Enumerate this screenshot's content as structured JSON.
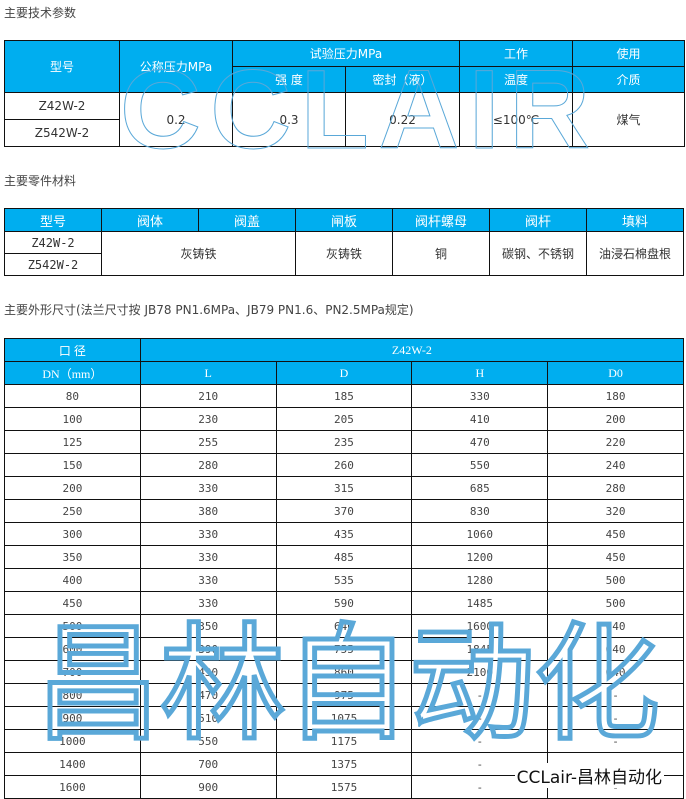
{
  "sections": {
    "tech": "主要技术参数",
    "materials": "主要零件材料",
    "dims": "主要外形尺寸(法兰尺寸按 JB78 PN1.6MPa、JB79 PN1.6、PN2.5MPa规定)"
  },
  "tech_table": {
    "h_model": "型号",
    "h_nominal": "公称压力MPa",
    "h_test": "试验压力MPa",
    "h_strength": "强 度",
    "h_seal": "密封（液）",
    "h_temp1": "工作",
    "h_temp2": "温度",
    "h_medium1": "使用",
    "h_medium2": "介质",
    "models": [
      "Z42W-2",
      "Z542W-2"
    ],
    "nominal": "0.2",
    "strength": "0.3",
    "seal": "0.22",
    "temp": "≤100℃",
    "medium": "煤气"
  },
  "mat_table": {
    "headers": [
      "型号",
      "阀体",
      "阀盖",
      "闸板",
      "阀杆螺母",
      "阀杆",
      "填料"
    ],
    "models": [
      "Z42W-2",
      "Z542W-2"
    ],
    "body": "灰铸铁",
    "gate": "灰铸铁",
    "nut": "铜",
    "stem": "碳钢、不锈钢",
    "packing": "油浸石棉盘根"
  },
  "dim_table": {
    "h_dn1": "口 径",
    "h_dn2": "DN（mm）",
    "h_model": "Z42W-2",
    "cols": [
      "L",
      "D",
      "H",
      "D0"
    ],
    "rows": [
      [
        "80",
        "210",
        "185",
        "330",
        "180"
      ],
      [
        "100",
        "230",
        "205",
        "410",
        "200"
      ],
      [
        "125",
        "255",
        "235",
        "470",
        "220"
      ],
      [
        "150",
        "280",
        "260",
        "550",
        "240"
      ],
      [
        "200",
        "330",
        "315",
        "685",
        "280"
      ],
      [
        "250",
        "380",
        "370",
        "830",
        "320"
      ],
      [
        "300",
        "330",
        "435",
        "1060",
        "450"
      ],
      [
        "350",
        "330",
        "485",
        "1200",
        "450"
      ],
      [
        "400",
        "330",
        "535",
        "1280",
        "500"
      ],
      [
        "450",
        "330",
        "590",
        "1485",
        "500"
      ],
      [
        "500",
        "350",
        "640",
        "1600",
        "640"
      ],
      [
        "600",
        "390",
        "755",
        "1845",
        "640"
      ],
      [
        "700",
        "430",
        "860",
        "2100",
        "640"
      ],
      [
        "800",
        "470",
        "975",
        "-",
        "-"
      ],
      [
        "900",
        "510",
        "1075",
        "-",
        "-"
      ],
      [
        "1000",
        "550",
        "1175",
        "-",
        "-"
      ],
      [
        "1400",
        "700",
        "1375",
        "-",
        "-"
      ],
      [
        "1600",
        "900",
        "1575",
        "-",
        "-"
      ]
    ]
  },
  "watermarks": {
    "top": "CCLAIR",
    "middle": "昌林自动化",
    "brand": "CCLair-昌林自动化",
    "color": "#5aa8d8"
  },
  "colors": {
    "header": "#00aeef"
  }
}
